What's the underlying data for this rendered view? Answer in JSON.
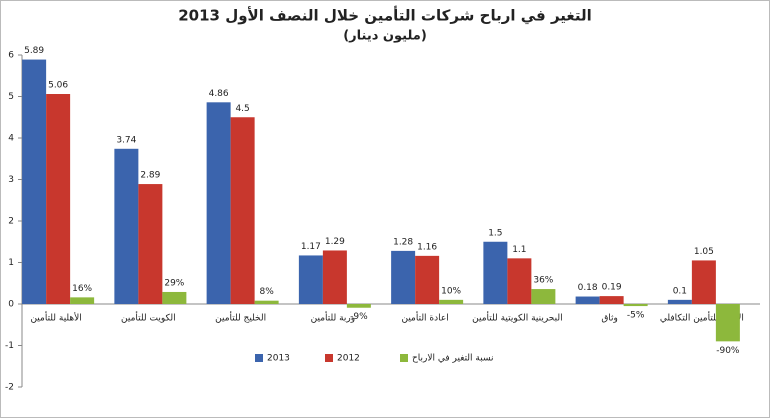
{
  "chart_data": {
    "type": "bar",
    "title": "التغير في ارباح شركات التأمين خلال النصف الأول 2013",
    "subtitle": "(مليون دينار)",
    "categories": [
      "الأهلية للتأمين",
      "الكويت للتأمين",
      "الخليج للتأمين",
      "وربة للتأمين",
      "اعادة التأمين",
      "البحرينية الكويتية للتأمين",
      "وثاق",
      "الأولى للتأمين التكافلي"
    ],
    "series": [
      {
        "name": "2013",
        "color": "#3b64ad",
        "values": [
          5.89,
          3.74,
          4.86,
          1.17,
          1.28,
          1.5,
          0.18,
          0.1
        ]
      },
      {
        "name": "2012",
        "color": "#c8372d",
        "values": [
          5.06,
          2.89,
          4.5,
          1.29,
          1.16,
          1.1,
          0.19,
          1.05
        ]
      },
      {
        "name": "نسبة التغير في الارباح",
        "color": "#8db83c",
        "values": [
          0.16,
          0.29,
          0.08,
          -0.09,
          0.1,
          0.36,
          -0.05,
          -0.9
        ],
        "value_labels": [
          "16%",
          "29%",
          "8%",
          "-9%",
          "10%",
          "36%",
          "-5%",
          "-90%"
        ]
      }
    ],
    "ylim": [
      -2,
      6
    ],
    "yticks": [
      -2,
      -1,
      0,
      1,
      2,
      3,
      4,
      5,
      6
    ],
    "grid": false,
    "legend": "bottom"
  }
}
